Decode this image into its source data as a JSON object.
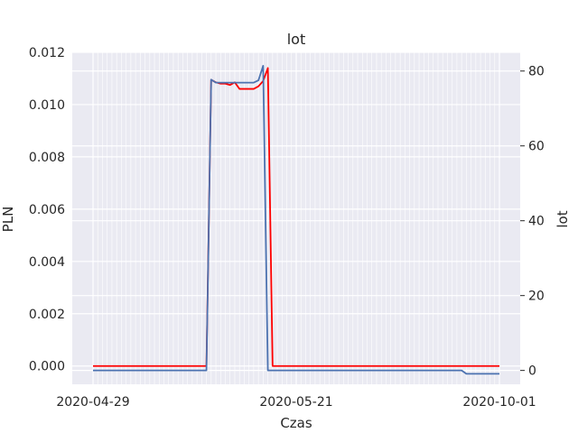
{
  "chart_data": {
    "type": "line",
    "title": "lot",
    "xlabel": "Czas",
    "ylabel": "PLN",
    "ylabel_right": "lot",
    "grid": true,
    "x_ticks": [
      "2020-04-29",
      "2020-05-21",
      "2020-10-01"
    ],
    "y_left": {
      "ylim": [
        -0.0007,
        0.012
      ],
      "ticks": [
        "0.000",
        "0.002",
        "0.004",
        "0.006",
        "0.008",
        "0.010",
        "0.012"
      ]
    },
    "y_right": {
      "ylim": [
        -3.7,
        85
      ],
      "ticks": [
        "0",
        "20",
        "40",
        "60",
        "80"
      ]
    },
    "x": [
      0,
      24,
      25,
      26,
      27,
      28,
      29,
      30,
      31,
      32,
      33,
      34,
      35,
      36,
      37,
      38,
      39,
      40,
      78,
      79,
      86
    ],
    "series": [
      {
        "axis": "left",
        "color": "#ff0000",
        "values": [
          0.0,
          0.0,
          0.01095,
          0.01085,
          0.0108,
          0.0108,
          0.01075,
          0.01085,
          0.0106,
          0.0106,
          0.0106,
          0.0106,
          0.0107,
          0.0109,
          0.0114,
          0.0,
          0.0,
          0.0,
          0.0,
          0.0,
          0.0
        ]
      },
      {
        "axis": "right",
        "color": "#4c72b0",
        "values": [
          0,
          0,
          77.7,
          76.9,
          76.9,
          76.9,
          76.9,
          76.9,
          76.9,
          76.9,
          76.9,
          76.9,
          77.5,
          81.4,
          0,
          0,
          0,
          0,
          0,
          -0.9,
          -0.9
        ]
      }
    ]
  }
}
